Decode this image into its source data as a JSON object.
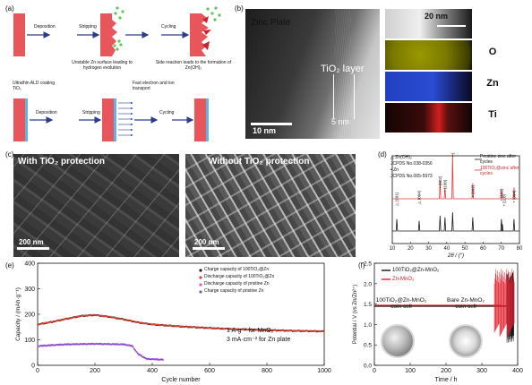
{
  "panel_labels": {
    "a": "(a)",
    "b": "(b)",
    "c": "(c)",
    "d": "(d)",
    "e": "(e)",
    "f": "(f)"
  },
  "panel_a": {
    "top_steps": [
      "Deposition",
      "Stripping",
      "Cycling"
    ],
    "top_captions": [
      "Unstable Zn surface leading to hydrogen evolution",
      "Side reaction leads to the formation of Zn(OH)₂"
    ],
    "bottom_label": "Ultrathin ALD coating TiO₂",
    "bottom_steps": [
      "Deposition",
      "Stripping",
      "Cycling"
    ],
    "bottom_caption": "Fast electron and ion transport"
  },
  "panel_b": {
    "zinc_plate": "Zinc Plate",
    "tio2_layer": "TiO₂ layer",
    "thickness": "5 nm",
    "scale_main": "10 nm",
    "scale_eds": "20 nm",
    "eds_labels": [
      "O",
      "Zn",
      "Ti"
    ],
    "colors": {
      "O": "#c9c600",
      "Zn": "#1d3fc4",
      "Ti": "#d6201c"
    }
  },
  "panel_c": {
    "left_title": "With TiO₂ protection",
    "right_title": "Without TiO₂ protection",
    "scale_left": "200 nm",
    "scale_right": "200 nm"
  },
  "panel_d": {
    "ref_lines": [
      "△ Zn(OH)₂",
      "JCPDS No.038-0356",
      "• Zn",
      "JCPDS No.065-5973"
    ],
    "legend": [
      "Prestine zinc after cycles",
      "100TiO₂@zinc after cycles"
    ],
    "peak_labels": [
      "△ (101)",
      "△ (004)",
      "• (002)",
      "• (100)",
      "• (101)",
      "• (102)",
      "• (103)",
      "• (110)",
      "• (004)"
    ],
    "xlabel": "2θ / (°)"
  },
  "panel_e": {
    "legend": [
      "Charge capacity of 100TiO₂@Zn",
      "Discharge capacity of 100TiO₂@Zn",
      "Discharge capacity of pristine Zn",
      "Charge capacity of pristine Zn"
    ],
    "note1": "1 A·g⁻¹ for MnO₂",
    "note2": "3 mA·cm⁻² for Zn plate",
    "xlabel": "Cycle number",
    "ylabel": "Capacity / (mAh·g⁻¹)"
  },
  "panel_f": {
    "legend": [
      "100TiO₂@Zn-MnO₂",
      "Zn-MnO₂"
    ],
    "cell_left": "100TiO₂@Zn-MnO₂ coin cell",
    "cell_right": "Bare Zn-MnO₂ coin cell",
    "xlabel": "Time / h",
    "ylabel": "Potential / V (vs Zn/Zn²⁺)"
  },
  "chart_data": [
    {
      "type": "line",
      "name": "panel-d-xrd",
      "xlabel": "2θ / (°)",
      "xlim": [
        10,
        80
      ],
      "xticks": [
        10,
        20,
        30,
        40,
        50,
        60,
        70,
        80
      ],
      "series": [
        {
          "name": "Prestine zinc after cycles",
          "color": "#1a1a1a",
          "peaks": [
            [
              12.5,
              0.35
            ],
            [
              24.8,
              0.3
            ],
            [
              36.3,
              0.45
            ],
            [
              39.0,
              0.4
            ],
            [
              43.2,
              0.55
            ],
            [
              54.3,
              0.4
            ],
            [
              70.1,
              0.35
            ],
            [
              70.6,
              0.2
            ],
            [
              77.0,
              0.35
            ]
          ]
        },
        {
          "name": "100TiO₂@zinc after cycles",
          "color": "#e23b3b",
          "peaks": [
            [
              36.3,
              0.4
            ],
            [
              39.0,
              0.25
            ],
            [
              43.2,
              1.0
            ],
            [
              54.3,
              0.35
            ],
            [
              70.1,
              0.2
            ],
            [
              77.0,
              0.25
            ]
          ]
        }
      ]
    },
    {
      "type": "scatter",
      "name": "panel-e-capacity",
      "xlabel": "Cycle number",
      "ylabel": "Capacity / (mAh·g⁻¹)",
      "xlim": [
        0,
        1000
      ],
      "ylim": [
        0,
        400
      ],
      "xticks": [
        0,
        200,
        400,
        600,
        800,
        1000
      ],
      "yticks": [
        0,
        100,
        200,
        300,
        400
      ],
      "series": [
        {
          "name": "Charge capacity of 100TiO₂@Zn",
          "color": "#222222",
          "points": [
            [
              1,
              160
            ],
            [
              50,
              170
            ],
            [
              100,
              182
            ],
            [
              150,
              193
            ],
            [
              200,
              197
            ],
            [
              250,
              190
            ],
            [
              300,
              180
            ],
            [
              350,
              168
            ],
            [
              400,
              160
            ],
            [
              500,
              152
            ],
            [
              600,
              146
            ],
            [
              700,
              141
            ],
            [
              800,
              138
            ],
            [
              900,
              135
            ],
            [
              1000,
              133
            ]
          ]
        },
        {
          "name": "Discharge capacity of 100TiO₂@Zn",
          "color": "#e0432f",
          "points": [
            [
              1,
              160
            ],
            [
              50,
              170
            ],
            [
              100,
              182
            ],
            [
              150,
              193
            ],
            [
              200,
              197
            ],
            [
              250,
              190
            ],
            [
              300,
              180
            ],
            [
              350,
              168
            ],
            [
              400,
              160
            ],
            [
              500,
              152
            ],
            [
              600,
              146
            ],
            [
              700,
              141
            ],
            [
              800,
              138
            ],
            [
              900,
              135
            ],
            [
              1000,
              133
            ]
          ]
        },
        {
          "name": "Discharge capacity of pristine Zn",
          "color": "#e055c8",
          "points": [
            [
              1,
              75
            ],
            [
              50,
              79
            ],
            [
              100,
              82
            ],
            [
              150,
              83
            ],
            [
              200,
              84
            ],
            [
              250,
              83
            ],
            [
              300,
              82
            ],
            [
              330,
              76
            ],
            [
              350,
              45
            ],
            [
              380,
              25
            ],
            [
              420,
              23
            ],
            [
              440,
              22
            ]
          ]
        },
        {
          "name": "Charge capacity of pristine Zn",
          "color": "#7a55d0",
          "points": [
            [
              1,
              75
            ],
            [
              50,
              79
            ],
            [
              100,
              82
            ],
            [
              150,
              83
            ],
            [
              200,
              84
            ],
            [
              250,
              83
            ],
            [
              300,
              82
            ],
            [
              330,
              76
            ],
            [
              350,
              45
            ],
            [
              380,
              25
            ],
            [
              420,
              23
            ],
            [
              440,
              22
            ]
          ]
        }
      ]
    },
    {
      "type": "line",
      "name": "panel-f-voltage",
      "xlabel": "Time / h",
      "ylabel": "Potential / V (vs Zn/Zn²⁺)",
      "xlim": [
        0,
        400
      ],
      "ylim": [
        0,
        2.5
      ],
      "xticks": [
        0,
        100,
        200,
        300,
        400
      ],
      "yticks": [
        0,
        0.5,
        1.0,
        1.5,
        2.0,
        2.5
      ],
      "series": [
        {
          "name": "100TiO₂@Zn-MnO₂",
          "color": "#111111",
          "baseline": 1.45,
          "end": 390
        },
        {
          "name": "Zn-MnO₂",
          "color": "#e0202e",
          "baseline": 1.45,
          "end": 310
        }
      ]
    }
  ]
}
